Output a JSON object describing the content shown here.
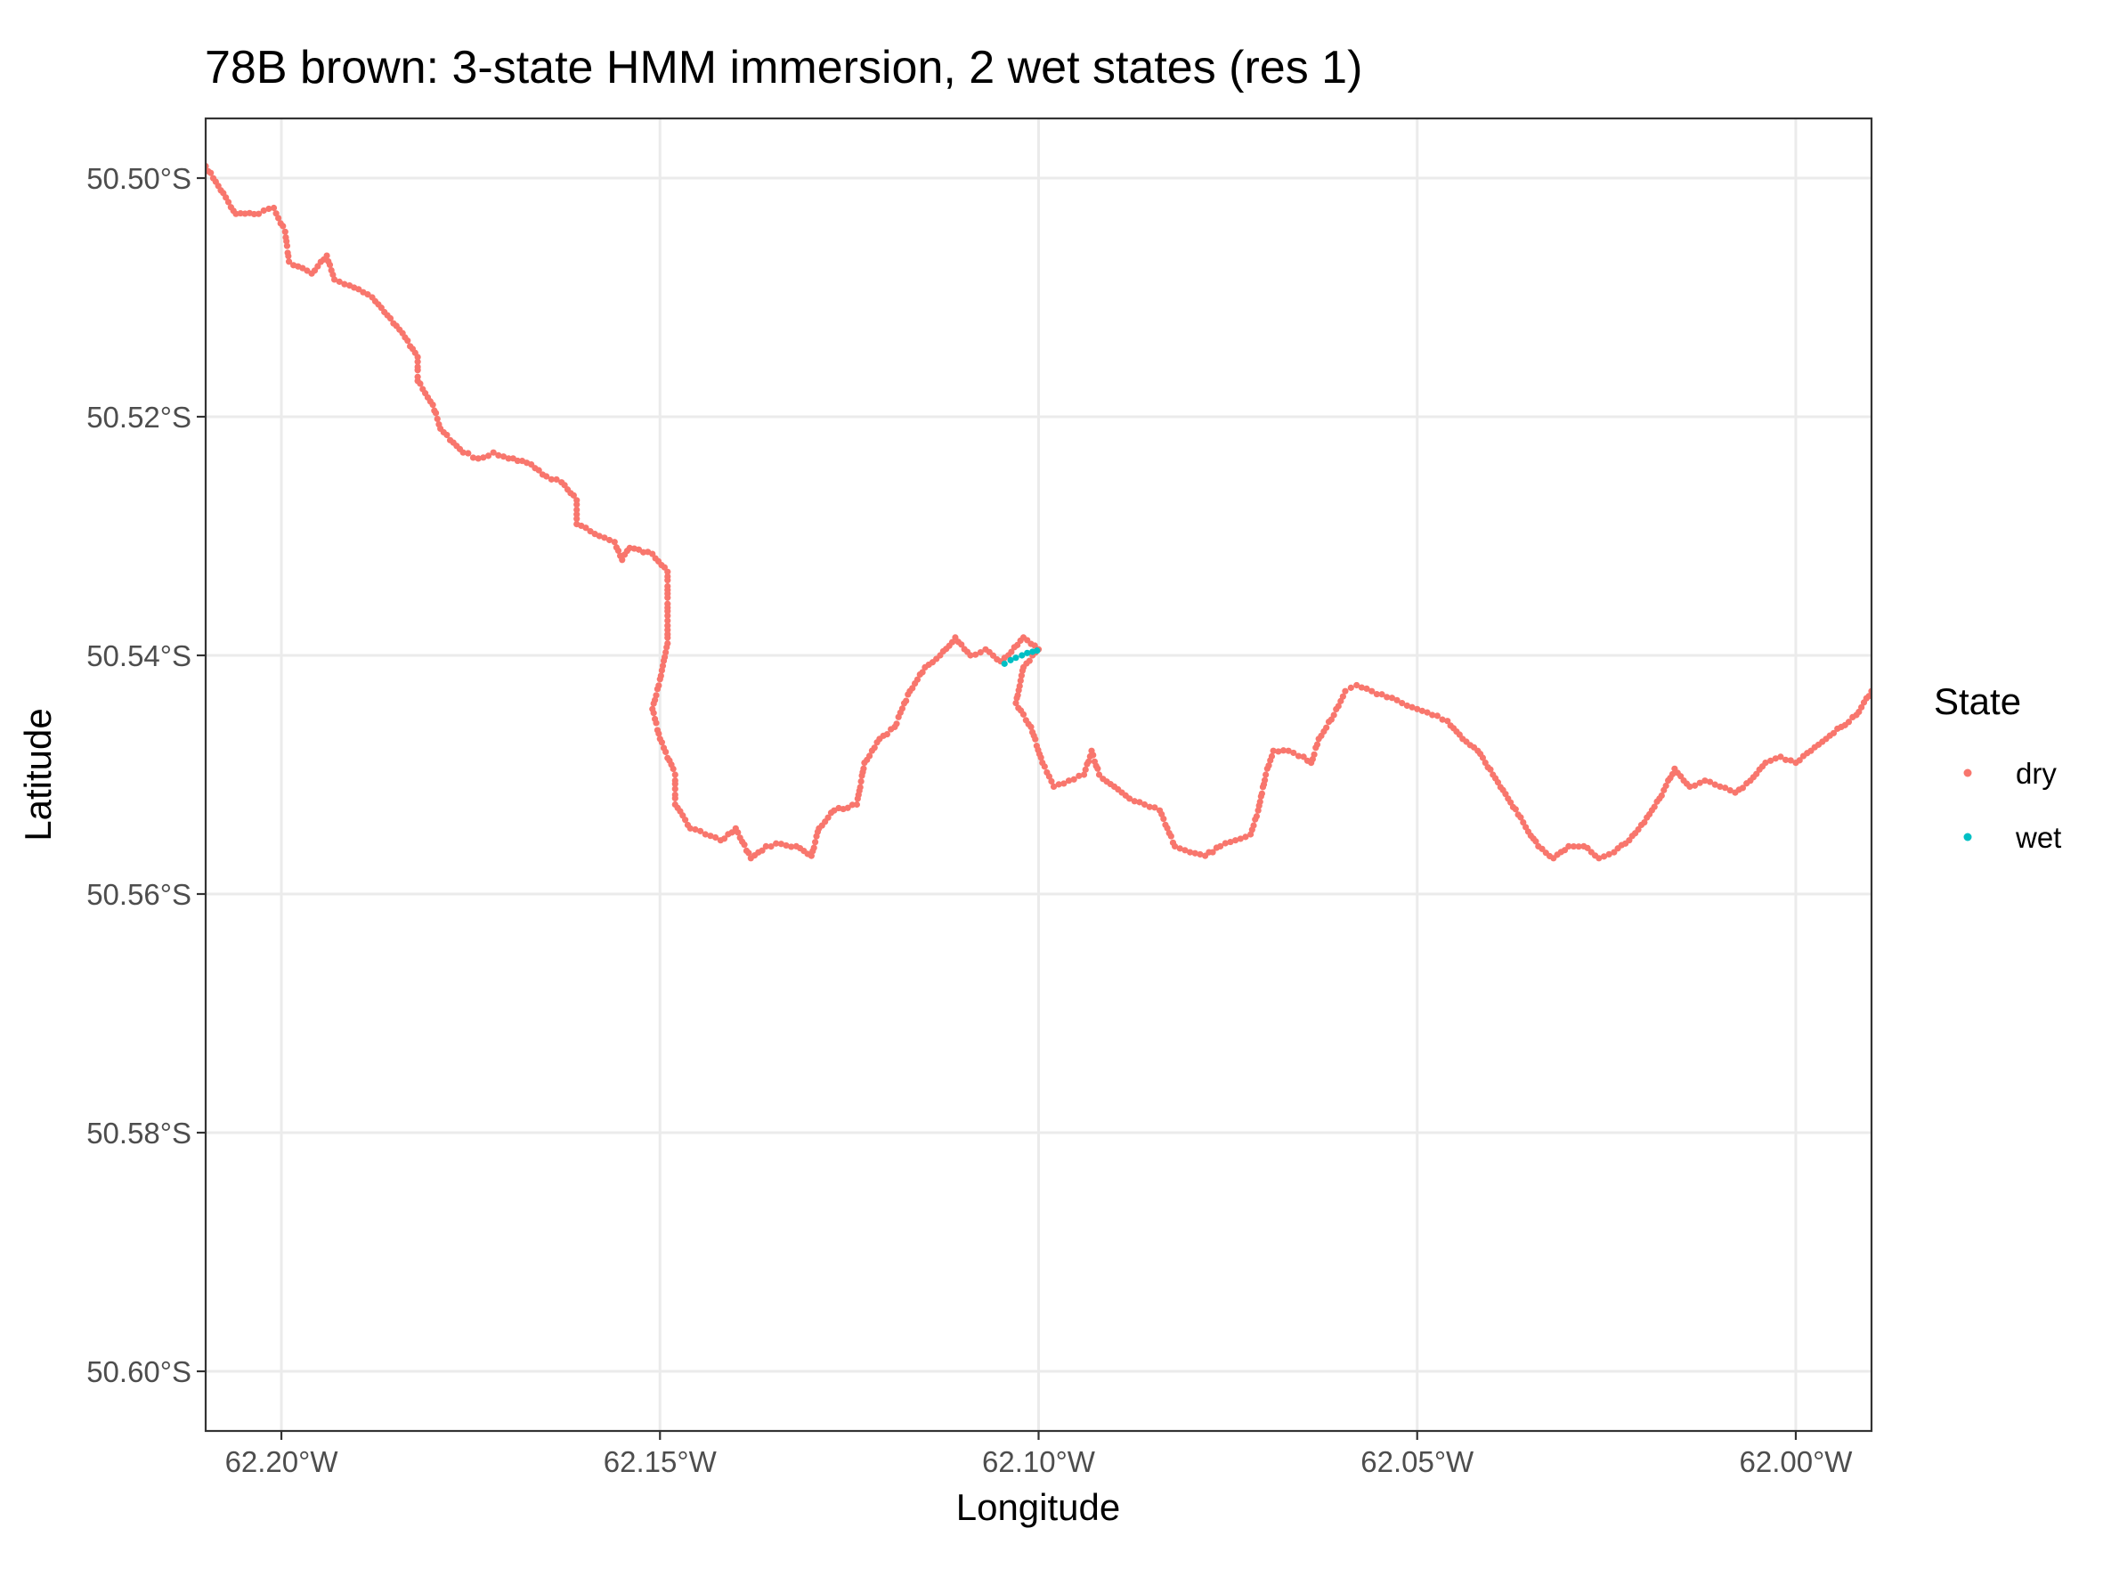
{
  "chart_data": {
    "type": "scatter",
    "title": "78B brown: 3-state HMM immersion, 2 wet states (res 1)",
    "xlabel": "Longitude",
    "ylabel": "Latitude",
    "xlim": [
      -62.21,
      -61.99
    ],
    "ylim": [
      -50.605,
      -50.495
    ],
    "x_ticks": [
      {
        "value": -62.2,
        "label": "62.20°W"
      },
      {
        "value": -62.15,
        "label": "62.15°W"
      },
      {
        "value": -62.1,
        "label": "62.10°W"
      },
      {
        "value": -62.05,
        "label": "62.05°W"
      },
      {
        "value": -62.0,
        "label": "62.00°W"
      }
    ],
    "y_ticks": [
      {
        "value": -50.5,
        "label": "50.50°S"
      },
      {
        "value": -50.52,
        "label": "50.52°S"
      },
      {
        "value": -50.54,
        "label": "50.54°S"
      },
      {
        "value": -50.56,
        "label": "50.56°S"
      },
      {
        "value": -50.58,
        "label": "50.58°S"
      },
      {
        "value": -50.6,
        "label": "50.60°S"
      }
    ],
    "grid": true,
    "legend": {
      "title": "State",
      "position": "right",
      "entries": [
        {
          "name": "dry",
          "color": "#F8766D"
        },
        {
          "name": "wet",
          "color": "#00BFC4"
        }
      ]
    },
    "series": [
      {
        "name": "dry",
        "color": "#F8766D",
        "points": [
          [
            -62.21,
            -50.499
          ],
          [
            -62.206,
            -50.503
          ],
          [
            -62.203,
            -50.503
          ],
          [
            -62.201,
            -50.5025
          ],
          [
            -62.1995,
            -50.5045
          ],
          [
            -62.199,
            -50.507
          ],
          [
            -62.196,
            -50.508
          ],
          [
            -62.194,
            -50.5065
          ],
          [
            -62.193,
            -50.5085
          ],
          [
            -62.191,
            -50.509
          ],
          [
            -62.188,
            -50.51
          ],
          [
            -62.186,
            -50.5115
          ],
          [
            -62.184,
            -50.513
          ],
          [
            -62.182,
            -50.515
          ],
          [
            -62.182,
            -50.517
          ],
          [
            -62.18,
            -50.519
          ],
          [
            -62.179,
            -50.521
          ],
          [
            -62.176,
            -50.523
          ],
          [
            -62.174,
            -50.5235
          ],
          [
            -62.172,
            -50.523
          ],
          [
            -62.17,
            -50.5235
          ],
          [
            -62.167,
            -50.524
          ],
          [
            -62.165,
            -50.525
          ],
          [
            -62.163,
            -50.5255
          ],
          [
            -62.161,
            -50.527
          ],
          [
            -62.161,
            -50.529
          ],
          [
            -62.158,
            -50.53
          ],
          [
            -62.156,
            -50.5305
          ],
          [
            -62.155,
            -50.532
          ],
          [
            -62.154,
            -50.531
          ],
          [
            -62.151,
            -50.5315
          ],
          [
            -62.149,
            -50.533
          ],
          [
            -62.149,
            -50.536
          ],
          [
            -62.149,
            -50.539
          ],
          [
            -62.15,
            -50.542
          ],
          [
            -62.151,
            -50.5445
          ],
          [
            -62.15,
            -50.547
          ],
          [
            -62.148,
            -50.55
          ],
          [
            -62.148,
            -50.5525
          ],
          [
            -62.146,
            -50.5545
          ],
          [
            -62.144,
            -50.555
          ],
          [
            -62.142,
            -50.5555
          ],
          [
            -62.14,
            -50.5545
          ],
          [
            -62.138,
            -50.557
          ],
          [
            -62.136,
            -50.556
          ],
          [
            -62.134,
            -50.5558
          ],
          [
            -62.132,
            -50.556
          ],
          [
            -62.13,
            -50.5568
          ],
          [
            -62.129,
            -50.5545
          ],
          [
            -62.127,
            -50.553
          ],
          [
            -62.124,
            -50.5525
          ],
          [
            -62.123,
            -50.549
          ],
          [
            -62.121,
            -50.547
          ],
          [
            -62.119,
            -50.546
          ],
          [
            -62.117,
            -50.543
          ],
          [
            -62.115,
            -50.541
          ],
          [
            -62.113,
            -50.54
          ],
          [
            -62.111,
            -50.5385
          ],
          [
            -62.109,
            -50.54
          ],
          [
            -62.107,
            -50.5395
          ],
          [
            -62.105,
            -50.5405
          ],
          [
            -62.104,
            -50.54
          ],
          [
            -62.102,
            -50.5385
          ],
          [
            -62.1,
            -50.5395
          ],
          [
            -62.102,
            -50.541
          ],
          [
            -62.103,
            -50.544
          ],
          [
            -62.101,
            -50.546
          ],
          [
            -62.0995,
            -50.549
          ],
          [
            -62.098,
            -50.551
          ],
          [
            -62.096,
            -50.5505
          ],
          [
            -62.094,
            -50.55
          ],
          [
            -62.093,
            -50.548
          ],
          [
            -62.092,
            -50.55
          ],
          [
            -62.09,
            -50.551
          ],
          [
            -62.088,
            -50.552
          ],
          [
            -62.086,
            -50.5525
          ],
          [
            -62.084,
            -50.553
          ],
          [
            -62.082,
            -50.556
          ],
          [
            -62.08,
            -50.5565
          ],
          [
            -62.078,
            -50.5568
          ],
          [
            -62.076,
            -50.556
          ],
          [
            -62.074,
            -50.5555
          ],
          [
            -62.072,
            -50.555
          ],
          [
            -62.071,
            -50.553
          ],
          [
            -62.07,
            -50.55
          ],
          [
            -62.069,
            -50.548
          ],
          [
            -62.067,
            -50.548
          ],
          [
            -62.065,
            -50.5485
          ],
          [
            -62.064,
            -50.549
          ],
          [
            -62.063,
            -50.547
          ],
          [
            -62.061,
            -50.545
          ],
          [
            -62.0595,
            -50.543
          ],
          [
            -62.058,
            -50.5425
          ],
          [
            -62.056,
            -50.543
          ],
          [
            -62.054,
            -50.5435
          ],
          [
            -62.052,
            -50.544
          ],
          [
            -62.05,
            -50.5445
          ],
          [
            -62.048,
            -50.545
          ],
          [
            -62.046,
            -50.5455
          ],
          [
            -62.044,
            -50.547
          ],
          [
            -62.042,
            -50.548
          ],
          [
            -62.04,
            -50.55
          ],
          [
            -62.038,
            -50.552
          ],
          [
            -62.036,
            -50.554
          ],
          [
            -62.034,
            -50.556
          ],
          [
            -62.032,
            -50.557
          ],
          [
            -62.03,
            -50.556
          ],
          [
            -62.028,
            -50.556
          ],
          [
            -62.026,
            -50.557
          ],
          [
            -62.024,
            -50.5565
          ],
          [
            -62.022,
            -50.5555
          ],
          [
            -62.02,
            -50.554
          ],
          [
            -62.018,
            -50.552
          ],
          [
            -62.016,
            -50.5495
          ],
          [
            -62.014,
            -50.551
          ],
          [
            -62.012,
            -50.5505
          ],
          [
            -62.01,
            -50.551
          ],
          [
            -62.008,
            -50.5515
          ],
          [
            -62.006,
            -50.5505
          ],
          [
            -62.004,
            -50.549
          ],
          [
            -62.002,
            -50.5485
          ],
          [
            -62.0,
            -50.549
          ],
          [
            -61.998,
            -50.548
          ],
          [
            -61.996,
            -50.547
          ],
          [
            -61.994,
            -50.546
          ],
          [
            -61.992,
            -50.545
          ],
          [
            -61.99,
            -50.543
          ]
        ]
      },
      {
        "name": "wet",
        "color": "#00BFC4",
        "points": [
          [
            -62.1045,
            -50.5407
          ],
          [
            -62.1037,
            -50.5404
          ],
          [
            -62.103,
            -50.5402
          ],
          [
            -62.1022,
            -50.54
          ],
          [
            -62.1015,
            -50.5398
          ],
          [
            -62.1008,
            -50.5397
          ],
          [
            -62.1002,
            -50.5396
          ]
        ]
      }
    ]
  }
}
